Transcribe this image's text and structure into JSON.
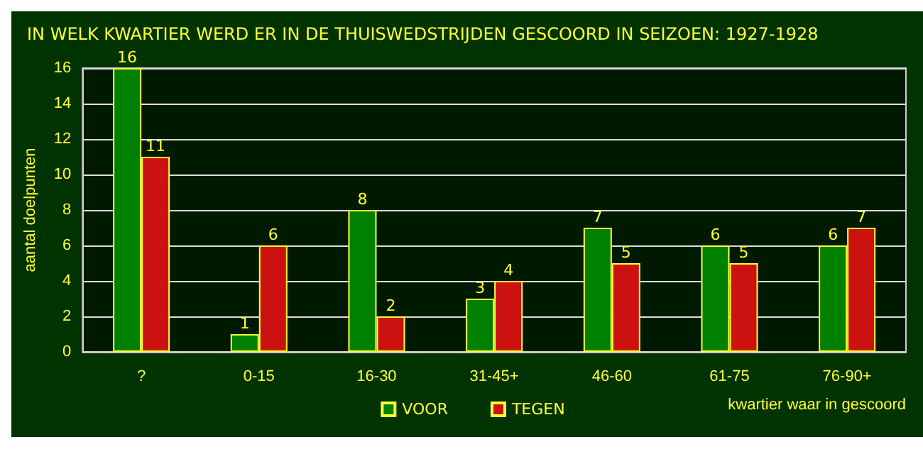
{
  "chart_data": {
    "type": "bar",
    "title": "IN WELK KWARTIER WERD ER IN DE THUISWEDSTRIJDEN GESCOORD IN SEIZOEN: 1927-1928",
    "xlabel": "kwartier waar in gescoord",
    "ylabel": "aantal doelpunten",
    "categories": [
      "?",
      "0-15",
      "16-30",
      "31-45+",
      "46-60",
      "61-75",
      "76-90+"
    ],
    "series": [
      {
        "name": "VOOR",
        "color": "#008000",
        "values": [
          16,
          1,
          8,
          3,
          7,
          6,
          6
        ]
      },
      {
        "name": "TEGEN",
        "color": "#cc1111",
        "values": [
          11,
          6,
          2,
          4,
          5,
          5,
          7
        ]
      }
    ],
    "ylim": [
      0,
      16
    ],
    "yticks": [
      0,
      2,
      4,
      6,
      8,
      10,
      12,
      14,
      16
    ],
    "grid": "y",
    "legend": "bottom",
    "data_labels": true
  }
}
